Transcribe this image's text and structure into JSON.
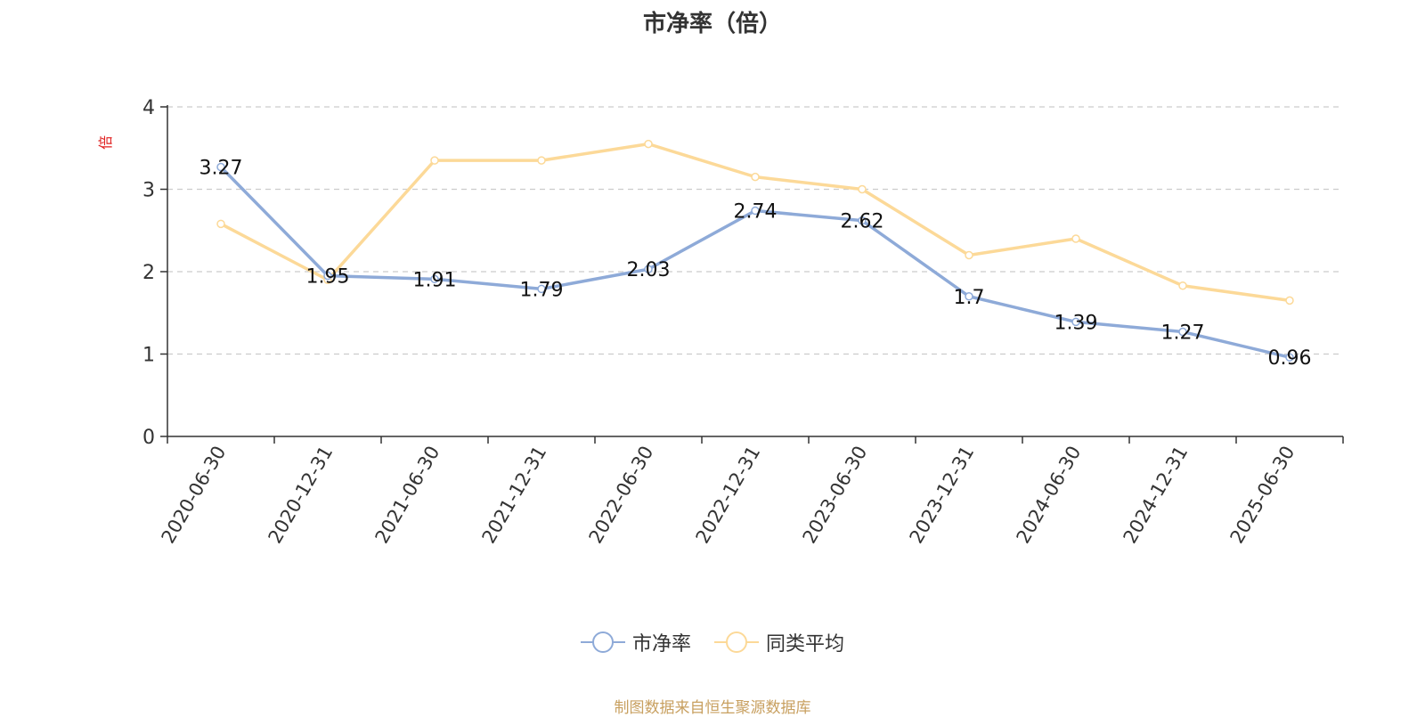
{
  "chart_data": {
    "type": "line",
    "title": "市净率（倍）",
    "ylabel": "倍",
    "xlabel": "",
    "categories": [
      "2020-06-30",
      "2020-12-31",
      "2021-06-30",
      "2021-12-31",
      "2022-06-30",
      "2022-12-31",
      "2023-06-30",
      "2023-12-31",
      "2024-06-30",
      "2024-12-31",
      "2025-06-30"
    ],
    "ylim": [
      0,
      4
    ],
    "yticks": [
      "0",
      "1",
      "2",
      "3",
      "4"
    ],
    "grid": true,
    "legend_position": "bottom",
    "series": [
      {
        "name": "市净率",
        "color": "#8eaad8",
        "values": [
          3.27,
          1.95,
          1.91,
          1.79,
          2.03,
          2.74,
          2.62,
          1.7,
          1.39,
          1.27,
          0.96
        ],
        "labels": [
          "3.27",
          "1.95",
          "1.91",
          "1.79",
          "2.03",
          "2.74",
          "2.62",
          "1.7",
          "1.39",
          "1.27",
          "0.96"
        ]
      },
      {
        "name": "同类平均",
        "color": "#fcd998",
        "values": [
          2.58,
          1.9,
          3.35,
          3.35,
          3.55,
          3.15,
          3.0,
          2.2,
          2.4,
          1.83,
          1.65
        ]
      }
    ]
  },
  "source_note": "制图数据来自恒生聚源数据库"
}
